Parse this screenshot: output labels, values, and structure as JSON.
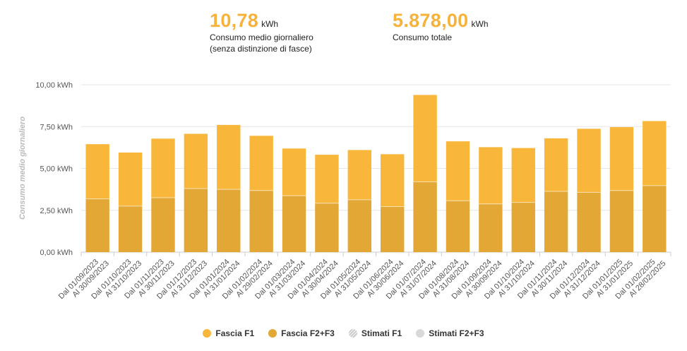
{
  "kpis": [
    {
      "value": "10,78",
      "unit": "kWh",
      "label_line1": "Consumo medio giornaliero",
      "label_line2": "(senza distinzione di fasce)"
    },
    {
      "value": "5.878,00",
      "unit": "kWh",
      "label_line1": "Consumo totale",
      "label_line2": ""
    }
  ],
  "chart_data": {
    "type": "bar",
    "stacked": true,
    "ylabel": "Consumo medio giornaliero",
    "ylim": [
      0,
      10
    ],
    "yticks": [
      0,
      2.5,
      5,
      7.5,
      10
    ],
    "ytick_labels": [
      "0,00 kWh",
      "2,50 kWh",
      "5,00 kWh",
      "7,50 kWh",
      "10,00 kWh"
    ],
    "grid": true,
    "legend_position": "bottom",
    "categories": [
      "Dal 01/09/2023 Al 30/09/2023",
      "Dal 01/10/2023 Al 31/10/2023",
      "Dal 01/11/2023 Al 30/11/2023",
      "Dal 01/12/2023 Al 31/12/2023",
      "Dal 01/01/2024 Al 31/01/2024",
      "Dal 01/02/2024 Al 29/02/2024",
      "Dal 01/03/2024 Al 31/03/2024",
      "Dal 01/04/2024 Al 30/04/2024",
      "Dal 01/05/2024 Al 31/05/2024",
      "Dal 01/06/2024 Al 30/06/2024",
      "Dal 01/07/2024 Al 31/07/2024",
      "Dal 01/08/2024 Al 31/08/2024",
      "Dal 01/09/2024 Al 30/09/2024",
      "Dal 01/10/2024 Al 31/10/2024",
      "Dal 01/11/2024 Al 30/11/2024",
      "Dal 01/12/2024 Al 31/12/2024",
      "Dal 01/01/2025 Al 31/01/2025",
      "Dal 01/02/2025 Al 28/02/2025"
    ],
    "category_lines": [
      [
        "Dal 01/09/2023",
        "Al 30/09/2023"
      ],
      [
        "Dal 01/10/2023",
        "Al 31/10/2023"
      ],
      [
        "Dal 01/11/2023",
        "Al 30/11/2023"
      ],
      [
        "Dal 01/12/2023",
        "Al 31/12/2023"
      ],
      [
        "Dal 01/01/2024",
        "Al 31/01/2024"
      ],
      [
        "Dal 01/02/2024",
        "Al 29/02/2024"
      ],
      [
        "Dal 01/03/2024",
        "Al 31/03/2024"
      ],
      [
        "Dal 01/04/2024",
        "Al 30/04/2024"
      ],
      [
        "Dal 01/05/2024",
        "Al 31/05/2024"
      ],
      [
        "Dal 01/06/2024",
        "Al 30/06/2024"
      ],
      [
        "Dal 01/07/2024",
        "Al 31/07/2024"
      ],
      [
        "Dal 01/08/2024",
        "Al 31/08/2024"
      ],
      [
        "Dal 01/09/2024",
        "Al 30/09/2024"
      ],
      [
        "Dal 01/10/2024",
        "Al 31/10/2024"
      ],
      [
        "Dal 01/11/2024",
        "Al 30/11/2024"
      ],
      [
        "Dal 01/12/2024",
        "Al 31/12/2024"
      ],
      [
        "Dal 01/01/2025",
        "Al 31/01/2025"
      ],
      [
        "Dal 01/02/2025",
        "Al 28/02/2025"
      ]
    ],
    "series": [
      {
        "name": "Fascia F2+F3",
        "color": "#e2a735",
        "values": [
          3.18,
          2.75,
          3.25,
          3.8,
          3.75,
          3.68,
          3.37,
          2.92,
          3.13,
          2.72,
          4.2,
          3.07,
          2.88,
          2.97,
          3.63,
          3.57,
          3.68,
          3.97
        ]
      },
      {
        "name": "Fascia F1",
        "color": "#f8b73b",
        "values": [
          3.27,
          3.2,
          3.53,
          3.27,
          3.85,
          3.27,
          2.82,
          2.9,
          2.97,
          3.13,
          5.19,
          3.55,
          3.39,
          3.25,
          3.17,
          3.8,
          3.79,
          3.86
        ]
      }
    ]
  },
  "legend": [
    {
      "label": "Fascia F1",
      "color": "#f8b73b",
      "icon": "filled-dot-icon"
    },
    {
      "label": "Fascia F2+F3",
      "color": "#e2a735",
      "icon": "filled-dot-icon"
    },
    {
      "label": "Stimati F1",
      "color": "#e6e6e6",
      "icon": "striped-dot-icon"
    },
    {
      "label": "Stimati F2+F3",
      "color": "#d9d9d9",
      "icon": "grey-dot-icon"
    }
  ]
}
